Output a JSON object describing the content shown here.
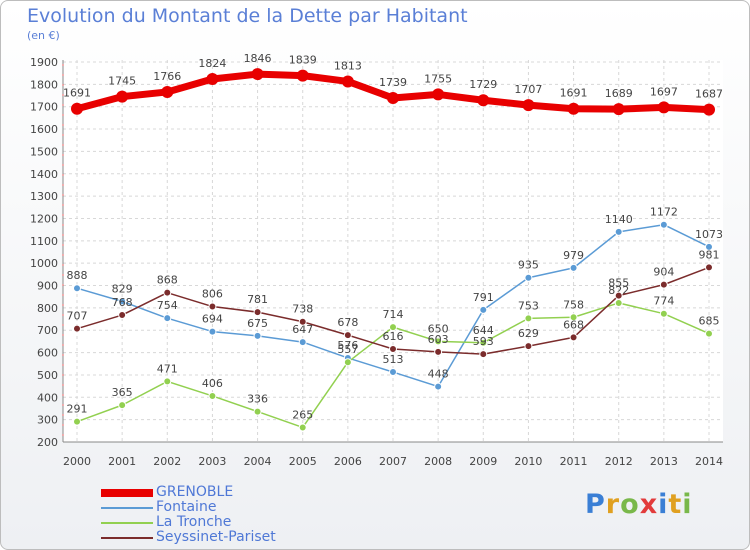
{
  "header": {
    "title": "Evolution du Montant de la Dette par Habitant",
    "unit": "(en €)"
  },
  "brand": {
    "letters": [
      "P",
      "r",
      "o",
      "x",
      "i",
      "t",
      "i"
    ],
    "colors": [
      "#3a7fd5",
      "#e0a020",
      "#79b84a",
      "#e23b3b",
      "#3a7fd5",
      "#e0a020",
      "#79b84a"
    ]
  },
  "chart_data": {
    "type": "line",
    "title": "Evolution du Montant de la Dette par Habitant",
    "ylabel": "(en €)",
    "xlabel": "",
    "ylim": [
      200,
      1900
    ],
    "ytick_step": 100,
    "grid": true,
    "legend_position": "bottom-left",
    "categories": [
      "2000",
      "2001",
      "2002",
      "2003",
      "2004",
      "2005",
      "2006",
      "2007",
      "2008",
      "2009",
      "2010",
      "2011",
      "2012",
      "2013",
      "2014"
    ],
    "series": [
      {
        "name": "GRENOBLE",
        "color": "#e80000",
        "emphasis": "thick",
        "values": [
          1691,
          1745,
          1766,
          1824,
          1846,
          1839,
          1813,
          1739,
          1755,
          1729,
          1707,
          1691,
          1689,
          1697,
          1687
        ]
      },
      {
        "name": "Fontaine",
        "color": "#5b9bd5",
        "values": [
          888,
          829,
          754,
          694,
          675,
          647,
          576,
          513,
          448,
          791,
          935,
          979,
          1140,
          1172,
          1073
        ]
      },
      {
        "name": "La Tronche",
        "color": "#92d050",
        "values": [
          291,
          365,
          471,
          406,
          336,
          265,
          557,
          714,
          650,
          644,
          753,
          758,
          822,
          774,
          685
        ]
      },
      {
        "name": "Seyssinet-Pariset",
        "color": "#7b2c2c",
        "values": [
          707,
          768,
          868,
          806,
          781,
          738,
          678,
          616,
          603,
          593,
          629,
          668,
          855,
          904,
          981
        ]
      }
    ]
  }
}
